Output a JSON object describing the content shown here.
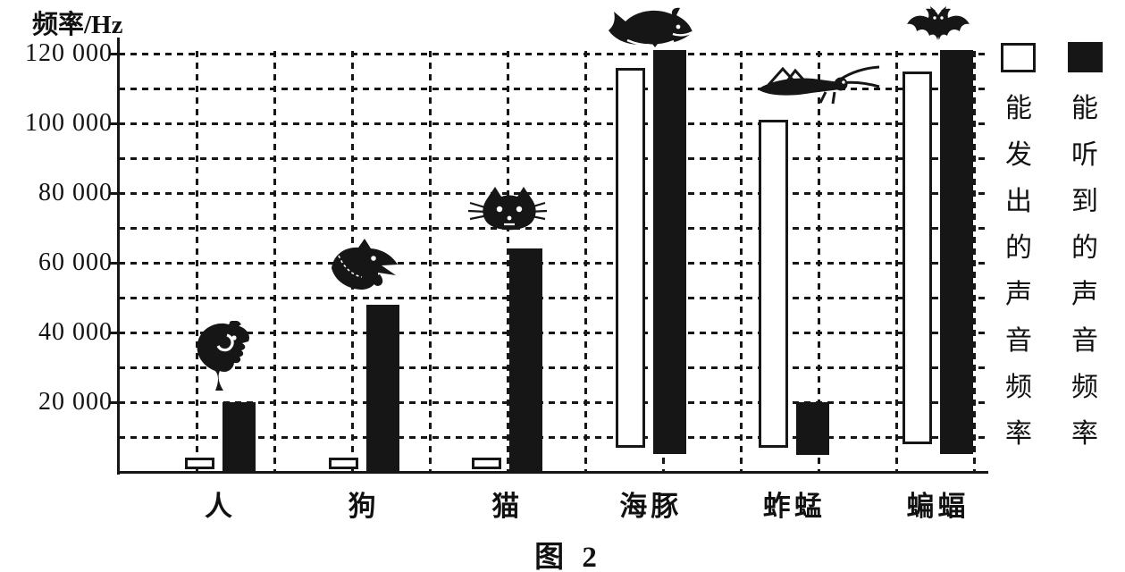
{
  "figure": {
    "caption": "图 2",
    "background": "#ffffff",
    "ink": "#161616"
  },
  "y_axis": {
    "title": "频率/Hz",
    "tick_labels": [
      "120 000",
      "100 000",
      "80 000",
      "60 000",
      "40 000",
      "20 000"
    ],
    "tick_values": [
      120000,
      100000,
      80000,
      60000,
      40000,
      20000
    ],
    "minor_gridline_step_hz": 10000
  },
  "legend": {
    "items": [
      {
        "swatch": "white",
        "label": "能发出的声音频率"
      },
      {
        "swatch": "black",
        "label": "能听到的声音频率"
      }
    ]
  },
  "chart_data": {
    "type": "bar",
    "subtype": "paired-range-columns",
    "title": "图 2",
    "ylabel": "频率/Hz",
    "units": "Hz",
    "ylim": [
      0,
      125000
    ],
    "grid": "dashed horizontal every 10000 Hz and dashed vertical columns",
    "legend_position": "right",
    "categories": [
      "人",
      "狗",
      "猫",
      "海豚",
      "蚱蜢",
      "蝙蝠"
    ],
    "category_icons": [
      "human-icon",
      "dog-icon",
      "cat-icon",
      "dolphin-icon",
      "grasshopper-icon",
      "bat-icon"
    ],
    "series": [
      {
        "name": "能发出的声音频率",
        "fill": "#ffffff",
        "ranges_hz": [
          [
            1000,
            4000
          ],
          [
            1000,
            4000
          ],
          [
            1000,
            4000
          ],
          [
            7000,
            116000
          ],
          [
            7000,
            101000
          ],
          [
            8000,
            115000
          ]
        ]
      },
      {
        "name": "能听到的声音频率",
        "fill": "#161616",
        "ranges_hz": [
          [
            0,
            20000
          ],
          [
            0,
            48000
          ],
          [
            0,
            64000
          ],
          [
            5000,
            121000
          ],
          [
            5000,
            20000
          ],
          [
            5000,
            121000
          ]
        ]
      }
    ]
  }
}
